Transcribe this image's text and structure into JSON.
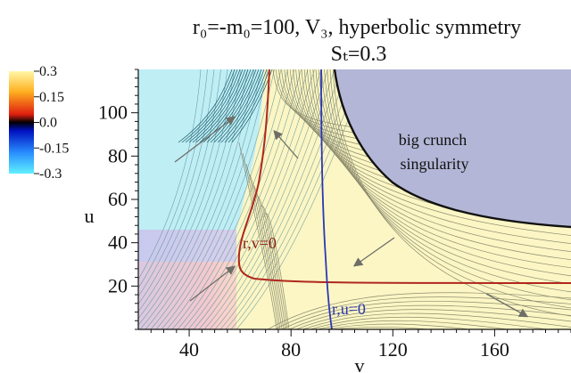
{
  "chart_data": {
    "type": "contour",
    "title_line1": "r₀=-m₀=100, V₃, hyperbolic symmetry",
    "title_line2": "Sₜ=0.3",
    "xlabel": "v",
    "ylabel": "u",
    "xlim": [
      20,
      190
    ],
    "ylim": [
      0,
      120
    ],
    "x_ticks": [
      40,
      80,
      120,
      160
    ],
    "y_ticks": [
      20,
      40,
      60,
      80,
      100
    ],
    "colorbar": {
      "ticks": [
        "0.3",
        "0.15",
        "0.0",
        "-0.15",
        "-0.3"
      ],
      "colors": [
        "#fff7a8",
        "#ffb020",
        "#e02010",
        "#000000",
        "#0010c0",
        "#2a90ff",
        "#60f0ff"
      ]
    },
    "annotations": {
      "singularity_line1": "big crunch",
      "singularity_line2": "singularity",
      "rv_label": "r,v=0",
      "ru_label": "r,u=0"
    },
    "colors": {
      "background_field": "#fbf6c4",
      "singularity_region": "#b3b6d6",
      "cyan_region": "#bfeef5",
      "rv_curve": "#b1271d",
      "ru_curve": "#2b37b5",
      "crunch_curve": "#111111",
      "contour": "#7a7a60"
    }
  }
}
